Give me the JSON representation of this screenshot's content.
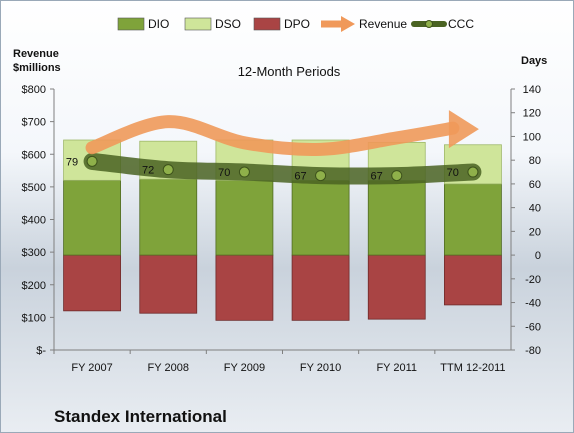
{
  "chart_data": {
    "type": "bar",
    "title": "12-Month Periods",
    "company": "Standex International",
    "left_axis_title_line1": "Revenue",
    "left_axis_title_line2": "$millions",
    "right_axis_title": "Days",
    "categories": [
      "FY 2007",
      "FY 2008",
      "FY 2009",
      "FY 2010",
      "FY 2011",
      "TTM 12-2011"
    ],
    "left_axis": {
      "min": 0,
      "max": 800,
      "step": 100,
      "tick_labels": [
        "$-",
        "$100",
        "$200",
        "$300",
        "$400",
        "$500",
        "$600",
        "$700",
        "$800"
      ]
    },
    "right_axis": {
      "min": -80,
      "max": 140,
      "step": 20,
      "tick_labels": [
        "-80",
        "-60",
        "-40",
        "-20",
        "0",
        "20",
        "40",
        "60",
        "80",
        "100",
        "120",
        "140"
      ]
    },
    "legend": [
      "DIO",
      "DSO",
      "DPO",
      "Revenue",
      "CCC"
    ],
    "legend_position": "top",
    "colors": {
      "DIO": "#7fa33a",
      "DSO": "#cfe59a",
      "DPO": "#a94444",
      "Revenue": "#f0995a",
      "CCC": "#5d7a2c"
    },
    "series": [
      {
        "name": "DIO",
        "axis": "right",
        "values": [
          63,
          64,
          63,
          63,
          63,
          60
        ]
      },
      {
        "name": "DSO",
        "axis": "right",
        "values": [
          34,
          32,
          34,
          34,
          32,
          33
        ]
      },
      {
        "name": "DPO",
        "axis": "right",
        "values": [
          -47,
          -49,
          -55,
          -55,
          -54,
          -42
        ]
      },
      {
        "name": "Revenue",
        "axis": "left",
        "values": [
          620,
          700,
          635,
          615,
          650,
          680
        ]
      },
      {
        "name": "CCC",
        "axis": "right",
        "values": [
          79,
          72,
          70,
          67,
          67,
          70
        ]
      }
    ],
    "data_labels": {
      "CCC": [
        "79",
        "72",
        "70",
        "67",
        "67",
        "70"
      ]
    }
  }
}
